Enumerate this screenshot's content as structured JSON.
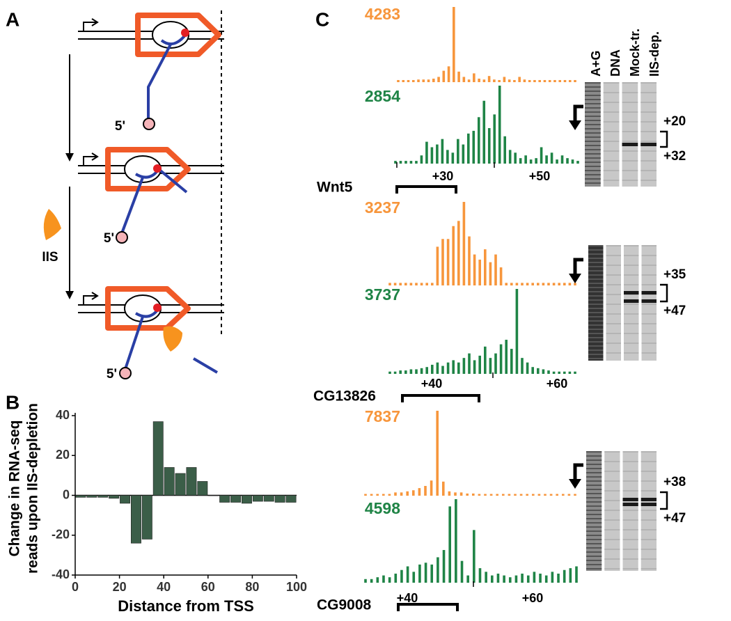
{
  "panel_labels": [
    "A",
    "B",
    "C"
  ],
  "diagram": {
    "rna_end": "5'",
    "factor": "IIS"
  },
  "chart_data": {
    "type": "bar",
    "color": "#3b5e48",
    "x": [
      2.5,
      7.5,
      12.5,
      17.5,
      22.5,
      27.5,
      32.5,
      37.5,
      42.5,
      47.5,
      52.5,
      57.5,
      62.5,
      67.5,
      72.5,
      77.5,
      82.5,
      87.5,
      92.5,
      97.5
    ],
    "values": [
      -1,
      -1,
      -1,
      -1.5,
      -4,
      -24,
      -22,
      37,
      14,
      11,
      14,
      7,
      0,
      -3.5,
      -3.5,
      -4,
      -3,
      -3,
      -3.5,
      -3.5
    ],
    "xlim": [
      0,
      100
    ],
    "ylim": [
      -40,
      40
    ],
    "xticks": [
      0,
      20,
      40,
      60,
      80,
      100
    ],
    "yticks": [
      -40,
      -20,
      0,
      20,
      40
    ],
    "x_label": "Distance from TSS",
    "y_label": [
      "Change in RNA-seq",
      "reads upon IIS-depletion"
    ]
  },
  "gel_lanes": [
    "A+G",
    "DNA",
    "Mock-tr.",
    "IIS-dep."
  ],
  "genes": [
    {
      "name": "Wnt5",
      "axis_labels": [
        "+30",
        "+50"
      ],
      "band_labels": [
        "+20",
        "+32"
      ],
      "tracks": [
        {
          "max": 4283,
          "color": "#f7963c",
          "values": [
            120,
            120,
            120,
            120,
            150,
            150,
            150,
            200,
            300,
            650,
            900,
            4283,
            600,
            300,
            150,
            500,
            200,
            150,
            350,
            150,
            120,
            300,
            150,
            120,
            300,
            150,
            120,
            120,
            120,
            120,
            120,
            120,
            120,
            120,
            120,
            120
          ]
        },
        {
          "max": 2854,
          "color": "#1f8446",
          "values": [
            100,
            100,
            100,
            100,
            100,
            300,
            800,
            600,
            700,
            900,
            500,
            400,
            900,
            700,
            1100,
            1200,
            1700,
            2300,
            1300,
            1800,
            2854,
            1000,
            500,
            400,
            200,
            300,
            150,
            200,
            600,
            300,
            400,
            150,
            300,
            200,
            150,
            100
          ]
        }
      ]
    },
    {
      "name": "CG13826",
      "axis_labels": [
        "+40",
        "+60"
      ],
      "band_labels": [
        "+35",
        "+47"
      ],
      "tracks": [
        {
          "max": 3237,
          "color": "#f7963c",
          "values": [
            100,
            100,
            100,
            100,
            100,
            100,
            100,
            100,
            100,
            1500,
            1800,
            1800,
            2300,
            2500,
            3237,
            1900,
            1200,
            1000,
            1400,
            900,
            1200,
            700,
            100,
            100,
            100,
            100,
            100,
            100,
            100,
            100,
            100,
            100,
            100,
            100,
            100,
            100
          ]
        },
        {
          "max": 3737,
          "color": "#1f8446",
          "values": [
            100,
            100,
            150,
            150,
            200,
            200,
            250,
            300,
            400,
            500,
            350,
            500,
            600,
            500,
            700,
            900,
            600,
            800,
            1200,
            700,
            900,
            1300,
            1500,
            1100,
            3737,
            700,
            500,
            300,
            250,
            200,
            150,
            100,
            100,
            100,
            100,
            100
          ]
        }
      ]
    },
    {
      "name": "CG9008",
      "axis_labels": [
        "+40",
        "+60"
      ],
      "band_labels": [
        "+38",
        "+47"
      ],
      "tracks": [
        {
          "max": 7837,
          "color": "#f7963c",
          "values": [
            100,
            100,
            100,
            100,
            100,
            300,
            300,
            400,
            500,
            700,
            900,
            1400,
            7837,
            1300,
            400,
            300,
            300,
            200,
            200,
            100,
            100,
            100,
            100,
            100,
            100,
            100,
            100,
            100,
            100,
            100,
            100,
            100,
            100,
            100,
            100,
            100
          ]
        },
        {
          "max": 4598,
          "color": "#1f8446",
          "values": [
            200,
            200,
            300,
            400,
            300,
            500,
            700,
            900,
            600,
            1000,
            1100,
            1000,
            1400,
            1800,
            4200,
            4598,
            1200,
            400,
            2900,
            800,
            600,
            400,
            500,
            400,
            300,
            400,
            500,
            400,
            600,
            500,
            400,
            600,
            500,
            700,
            800,
            900
          ]
        }
      ]
    }
  ]
}
